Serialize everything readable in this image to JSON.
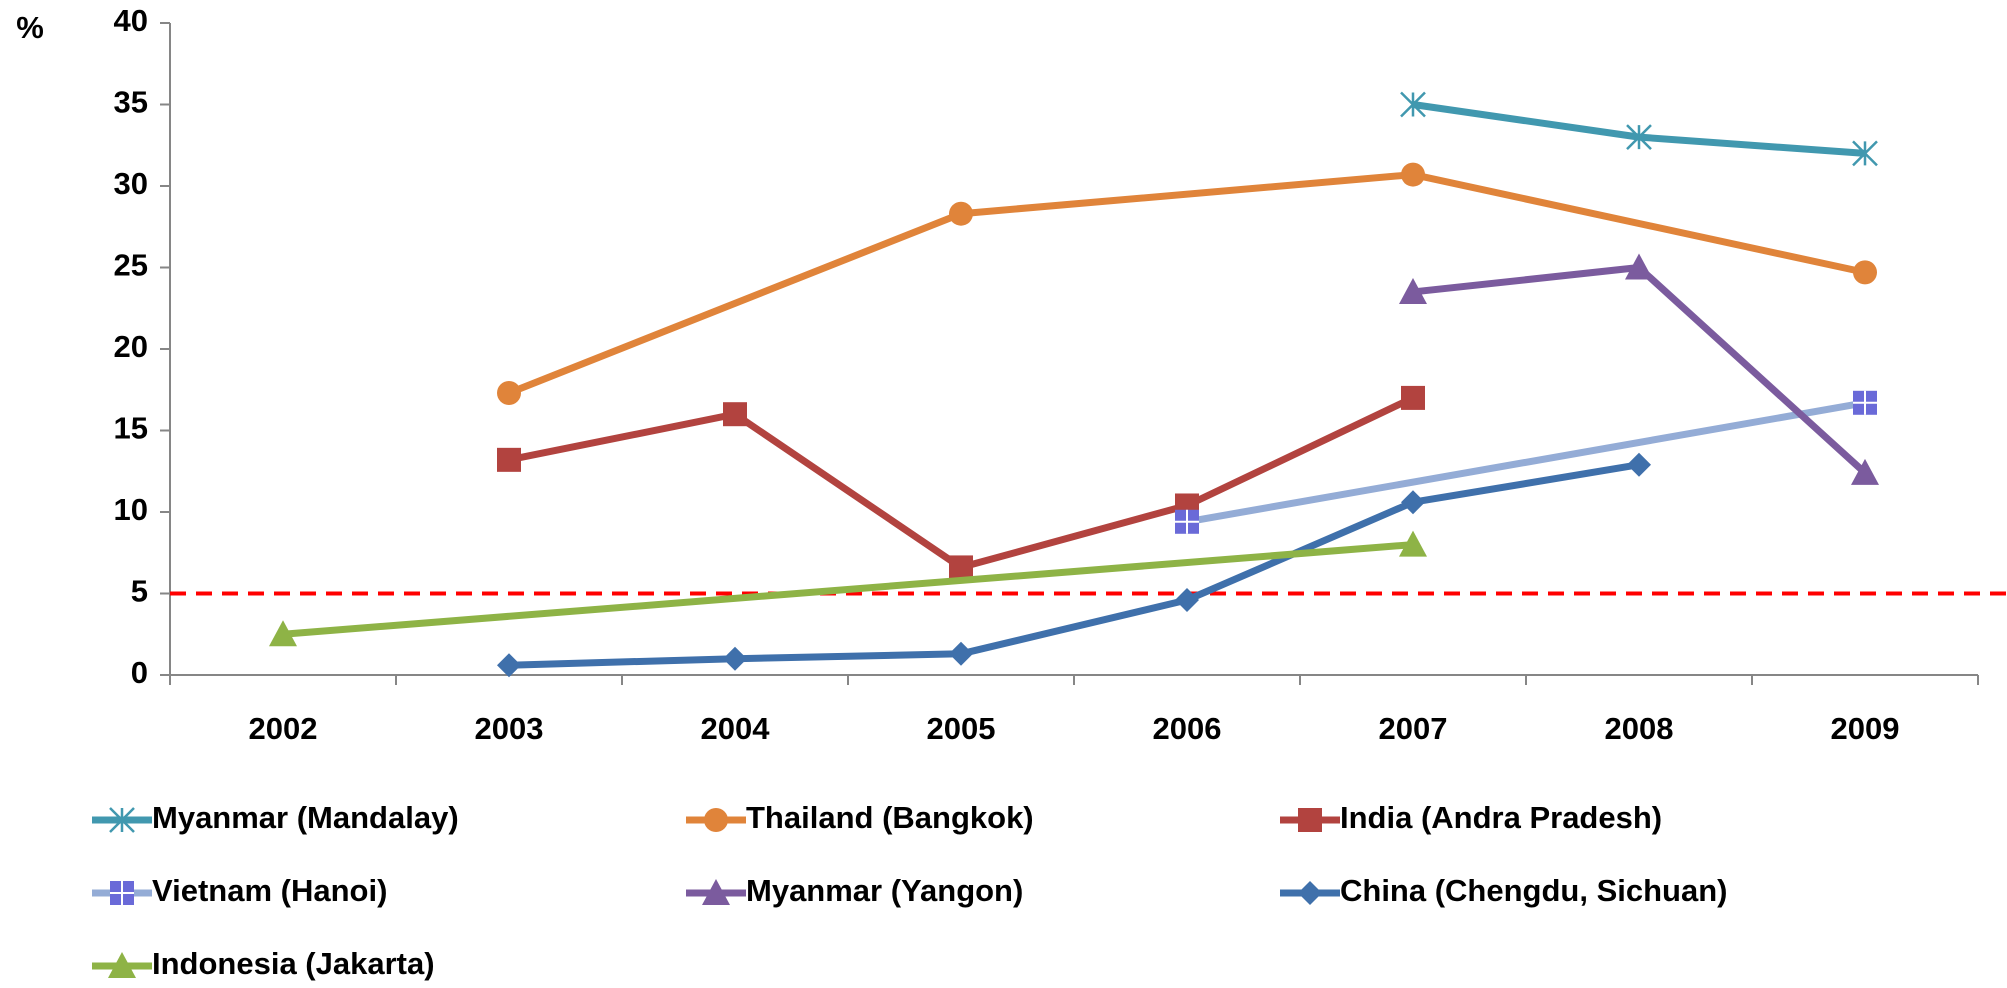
{
  "chart_data": {
    "type": "line",
    "y_axis_label": "%",
    "categories": [
      "2002",
      "2003",
      "2004",
      "2005",
      "2006",
      "2007",
      "2008",
      "2009"
    ],
    "ylim": [
      0,
      40
    ],
    "yticks": [
      0,
      5,
      10,
      15,
      20,
      25,
      30,
      35,
      40
    ],
    "reference_line": {
      "value": 5,
      "color": "#ff0000"
    },
    "series": [
      {
        "name": "Myanmar (Mandalay)",
        "color": "#4198af",
        "marker": "star",
        "x": [
          "2007",
          "2008",
          "2009"
        ],
        "values": [
          35,
          33,
          32
        ]
      },
      {
        "name": "Thailand (Bangkok)",
        "color": "#e0843a",
        "marker": "circle",
        "x": [
          "2003",
          "2005",
          "2007",
          "2009"
        ],
        "values": [
          17.3,
          28.3,
          30.7,
          24.7
        ]
      },
      {
        "name": "India (Andra Pradesh)",
        "color": "#b2433f",
        "marker": "square",
        "x": [
          "2003",
          "2004",
          "2005",
          "2006",
          "2007"
        ],
        "values": [
          13.2,
          16,
          6.6,
          10.4,
          17
        ]
      },
      {
        "name": "Vietnam (Hanoi)",
        "color": "#94acd6",
        "marker_color": "#6a6ad8",
        "marker": "square-plus",
        "x": [
          "2006",
          "2009"
        ],
        "values": [
          9.4,
          16.7
        ]
      },
      {
        "name": "Myanmar (Yangon)",
        "color": "#7b5b9e",
        "marker": "triangle",
        "x": [
          "2007",
          "2008",
          "2009"
        ],
        "values": [
          23.5,
          25,
          12.4
        ]
      },
      {
        "name": "China (Chengdu, Sichuan)",
        "color": "#3f70ab",
        "marker": "diamond",
        "x": [
          "2003",
          "2004",
          "2005",
          "2006",
          "2007",
          "2008"
        ],
        "values": [
          0.6,
          1,
          1.3,
          4.6,
          10.6,
          12.9
        ]
      },
      {
        "name": "Indonesia (Jakarta)",
        "color": "#8eb346",
        "marker": "triangle",
        "x": [
          "2002",
          "2007"
        ],
        "values": [
          2.5,
          8
        ]
      }
    ]
  }
}
